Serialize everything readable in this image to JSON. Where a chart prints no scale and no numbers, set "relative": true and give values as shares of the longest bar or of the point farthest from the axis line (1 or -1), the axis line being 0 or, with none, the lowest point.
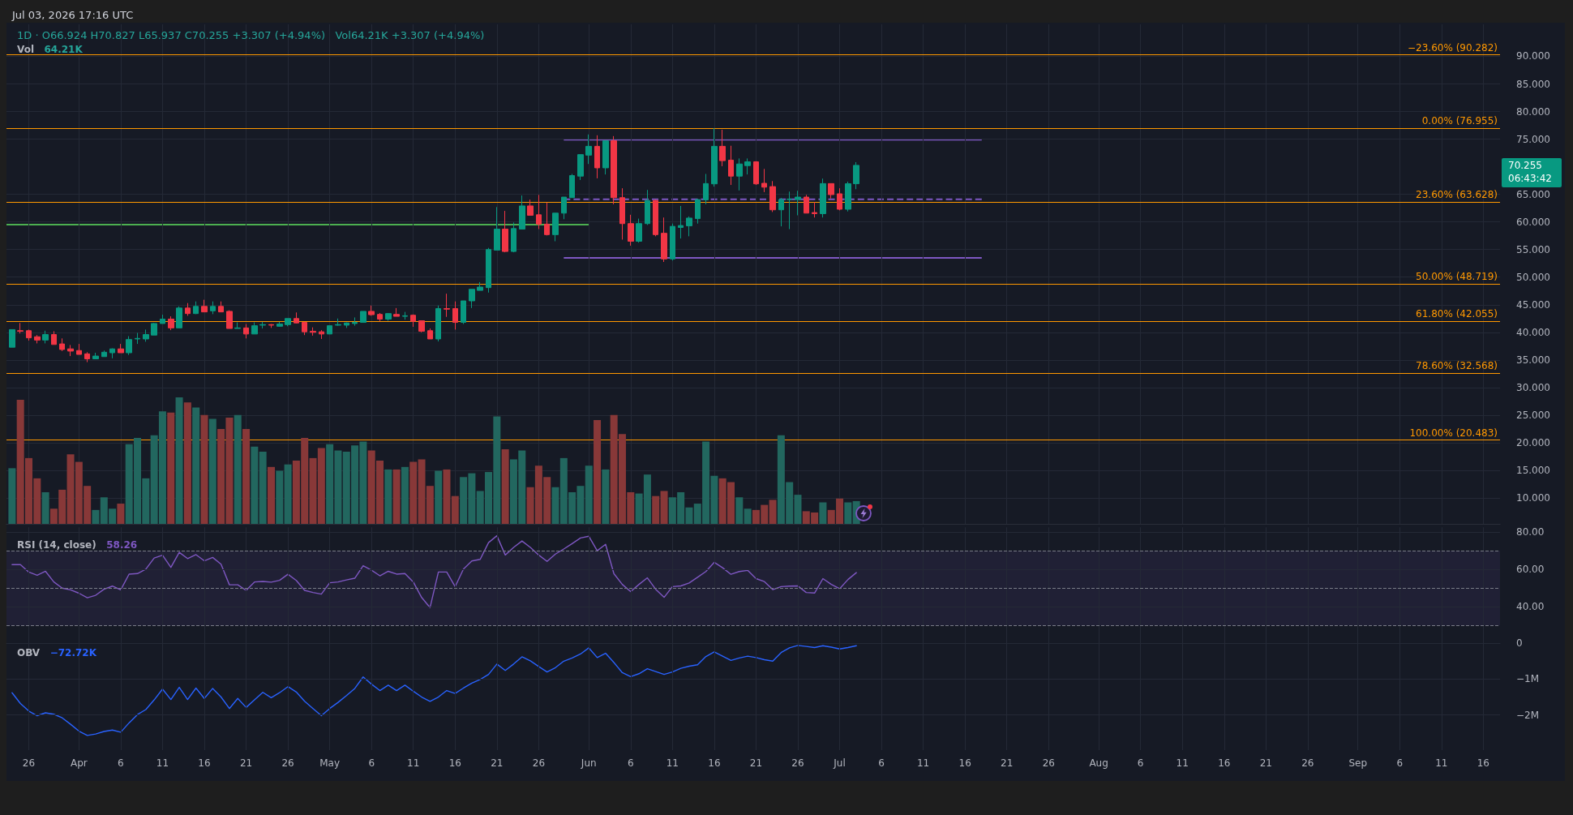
{
  "chart_data": [
    {
      "type": "candlestick",
      "title": "Jul 03, 2026 17:16 UTC",
      "subtitle": "1D · O66.924 H70.827 L65.937 C70.255 +3.307 (+4.94%)   Vol64.21K +3.307 (+4.94%)",
      "annotations": [
        "70.255",
        "06:43:42"
      ],
      "x": [
        "2026-03-24",
        "2026-03-25",
        "2026-03-26",
        "2026-03-27",
        "2026-03-28",
        "2026-03-29",
        "2026-03-30",
        "2026-03-31",
        "2026-04-01",
        "2026-04-02",
        "2026-04-03",
        "2026-04-04",
        "2026-04-05",
        "2026-04-06",
        "2026-04-07",
        "2026-04-08",
        "2026-04-09",
        "2026-04-10",
        "2026-04-11",
        "2026-04-12",
        "2026-04-13",
        "2026-04-14",
        "2026-04-15",
        "2026-04-16",
        "2026-04-17",
        "2026-04-18",
        "2026-04-19",
        "2026-04-20",
        "2026-04-21",
        "2026-04-22",
        "2026-04-23",
        "2026-04-24",
        "2026-04-25",
        "2026-04-26",
        "2026-04-27",
        "2026-04-28",
        "2026-04-29",
        "2026-04-30",
        "2026-05-01",
        "2026-05-02",
        "2026-05-03",
        "2026-05-04",
        "2026-05-05",
        "2026-05-06",
        "2026-05-07",
        "2026-05-08",
        "2026-05-09",
        "2026-05-10",
        "2026-05-11",
        "2026-05-12",
        "2026-05-13",
        "2026-05-14",
        "2026-05-15",
        "2026-05-16",
        "2026-05-17",
        "2026-05-18",
        "2026-05-19",
        "2026-05-20",
        "2026-05-21",
        "2026-05-22",
        "2026-05-23",
        "2026-05-24",
        "2026-05-25",
        "2026-05-26",
        "2026-05-27",
        "2026-05-28",
        "2026-05-29",
        "2026-05-30",
        "2026-05-31",
        "2026-06-01",
        "2026-06-02",
        "2026-06-03",
        "2026-06-04",
        "2026-06-05",
        "2026-06-06",
        "2026-06-07",
        "2026-06-08",
        "2026-06-09",
        "2026-06-10",
        "2026-06-11",
        "2026-06-12",
        "2026-06-13",
        "2026-06-14",
        "2026-06-15",
        "2026-06-16",
        "2026-06-17",
        "2026-06-18",
        "2026-06-19",
        "2026-06-20",
        "2026-06-21",
        "2026-06-22",
        "2026-06-23",
        "2026-06-24",
        "2026-06-25",
        "2026-06-26",
        "2026-06-27",
        "2026-06-28",
        "2026-06-29",
        "2026-06-30",
        "2026-07-01",
        "2026-07-02",
        "2026-07-03"
      ],
      "ohlc": [
        [
          37.3,
          40.5,
          37.3,
          40.5
        ],
        [
          40.3,
          41.7,
          39.8,
          40.2
        ],
        [
          40.3,
          40.5,
          38.5,
          39.0
        ],
        [
          39.2,
          39.5,
          38.0,
          38.6
        ],
        [
          38.6,
          40.3,
          38.0,
          39.6
        ],
        [
          39.6,
          40.2,
          37.8,
          37.8
        ],
        [
          37.9,
          38.9,
          36.6,
          36.9
        ],
        [
          37.0,
          37.7,
          35.7,
          36.6
        ],
        [
          36.7,
          37.9,
          36.0,
          36.0
        ],
        [
          36.1,
          36.4,
          34.6,
          35.2
        ],
        [
          35.2,
          36.3,
          35.2,
          35.7
        ],
        [
          35.6,
          36.7,
          35.6,
          36.4
        ],
        [
          36.3,
          37.1,
          35.3,
          37.0
        ],
        [
          37.0,
          37.9,
          36.3,
          36.3
        ],
        [
          36.3,
          39.3,
          35.9,
          38.7
        ],
        [
          38.8,
          39.9,
          37.9,
          38.9
        ],
        [
          38.8,
          40.5,
          38.3,
          39.6
        ],
        [
          39.5,
          41.7,
          39.5,
          41.6
        ],
        [
          41.6,
          43.2,
          41.6,
          42.4
        ],
        [
          42.4,
          42.9,
          40.4,
          40.8
        ],
        [
          40.8,
          44.7,
          40.8,
          44.4
        ],
        [
          44.4,
          45.3,
          43.0,
          43.4
        ],
        [
          43.4,
          45.6,
          43.3,
          44.7
        ],
        [
          44.7,
          45.9,
          43.7,
          43.7
        ],
        [
          43.9,
          45.6,
          43.3,
          44.7
        ],
        [
          44.7,
          45.6,
          43.7,
          43.7
        ],
        [
          43.8,
          44.0,
          40.7,
          40.7
        ],
        [
          40.7,
          41.8,
          40.7,
          40.8
        ],
        [
          40.8,
          41.5,
          38.9,
          39.7
        ],
        [
          39.7,
          41.8,
          39.7,
          41.2
        ],
        [
          41.3,
          41.9,
          40.7,
          41.4
        ],
        [
          41.4,
          41.5,
          40.8,
          41.3
        ],
        [
          41.1,
          41.9,
          41.0,
          41.5
        ],
        [
          41.4,
          42.5,
          41.1,
          42.5
        ],
        [
          42.5,
          43.6,
          41.6,
          41.7
        ],
        [
          41.8,
          41.9,
          39.5,
          40.1
        ],
        [
          40.2,
          40.9,
          39.4,
          40.0
        ],
        [
          40.1,
          40.4,
          38.8,
          39.7
        ],
        [
          39.7,
          41.2,
          39.7,
          41.2
        ],
        [
          41.3,
          42.5,
          41.2,
          41.4
        ],
        [
          41.3,
          41.8,
          40.8,
          41.7
        ],
        [
          41.6,
          42.7,
          41.2,
          41.8
        ],
        [
          41.8,
          43.8,
          41.8,
          43.8
        ],
        [
          43.8,
          44.85,
          43.0,
          43.2
        ],
        [
          43.25,
          43.5,
          42.0,
          42.4
        ],
        [
          42.4,
          43.5,
          42.1,
          43.4
        ],
        [
          43.25,
          44.4,
          42.9,
          42.9
        ],
        [
          42.9,
          43.7,
          42.3,
          43.0
        ],
        [
          43.1,
          43.25,
          41.0,
          42.0
        ],
        [
          42.1,
          42.1,
          40.0,
          40.2
        ],
        [
          40.3,
          40.7,
          38.8,
          38.8
        ],
        [
          38.8,
          44.85,
          38.35,
          44.3
        ],
        [
          44.3,
          47.0,
          42.8,
          44.2
        ],
        [
          44.3,
          45.6,
          40.5,
          41.8
        ],
        [
          41.8,
          45.7,
          41.5,
          45.7
        ],
        [
          45.7,
          47.8,
          44.4,
          47.8
        ],
        [
          47.6,
          49.1,
          47.6,
          48.2
        ],
        [
          48.1,
          55.3,
          47.2,
          55.0
        ],
        [
          54.9,
          62.7,
          54.9,
          58.7
        ],
        [
          58.7,
          62.0,
          54.5,
          54.65
        ],
        [
          54.65,
          59.9,
          54.5,
          58.8
        ],
        [
          58.7,
          64.8,
          58.7,
          62.9
        ],
        [
          62.9,
          64.05,
          61.2,
          61.2
        ],
        [
          61.3,
          64.9,
          58.7,
          59.6
        ],
        [
          59.6,
          63.5,
          57.55,
          57.7
        ],
        [
          57.7,
          61.6,
          56.5,
          61.6
        ],
        [
          61.6,
          64.5,
          60.5,
          64.5
        ],
        [
          64.4,
          68.7,
          64.4,
          68.4
        ],
        [
          68.3,
          72.2,
          67.6,
          72.2
        ],
        [
          72.1,
          75.85,
          70.5,
          73.7
        ],
        [
          73.7,
          75.7,
          67.9,
          69.8
        ],
        [
          69.8,
          74.7,
          68.6,
          74.7
        ],
        [
          74.7,
          75.55,
          63.2,
          64.4
        ],
        [
          64.4,
          66.1,
          56.8,
          59.7
        ],
        [
          59.7,
          61.3,
          55.7,
          56.5
        ],
        [
          56.5,
          60.6,
          56.25,
          59.7
        ],
        [
          59.7,
          65.8,
          59.45,
          63.9
        ],
        [
          63.9,
          64.05,
          57.4,
          57.7
        ],
        [
          57.95,
          60.8,
          52.75,
          53.3
        ],
        [
          53.3,
          59.7,
          53.0,
          59.2
        ],
        [
          59.0,
          62.9,
          57.0,
          59.35
        ],
        [
          59.3,
          61.0,
          57.4,
          60.7
        ],
        [
          60.6,
          64.2,
          59.7,
          64.05
        ],
        [
          64.0,
          68.7,
          63.2,
          66.95
        ],
        [
          66.9,
          77.0,
          66.4,
          73.7
        ],
        [
          73.7,
          76.7,
          70.1,
          71.1
        ],
        [
          71.2,
          73.8,
          66.7,
          68.3
        ],
        [
          68.3,
          71.5,
          65.7,
          70.5
        ],
        [
          70.2,
          71.5,
          68.6,
          70.9
        ],
        [
          70.9,
          71.0,
          66.7,
          66.9
        ],
        [
          67.0,
          69.6,
          65.4,
          66.3
        ],
        [
          66.4,
          67.4,
          61.8,
          62.2
        ],
        [
          62.2,
          64.35,
          59.2,
          64.05
        ],
        [
          64.05,
          65.5,
          58.7,
          64.15
        ],
        [
          64.05,
          65.65,
          61.2,
          64.5
        ],
        [
          64.5,
          64.9,
          61.6,
          61.6
        ],
        [
          61.7,
          63.6,
          60.8,
          61.5
        ],
        [
          61.5,
          67.85,
          60.8,
          66.95
        ],
        [
          66.95,
          66.95,
          64.25,
          64.95
        ],
        [
          65.1,
          66.1,
          62.1,
          62.3
        ],
        [
          62.3,
          67.3,
          61.9,
          66.924
        ],
        [
          66.924,
          70.827,
          65.937,
          70.255
        ]
      ],
      "colors": [
        "#089981",
        "#f23645",
        "#f23645",
        "#f23645",
        "#089981",
        "#f23645",
        "#f23645",
        "#f23645",
        "#f23645",
        "#f23645",
        "#089981",
        "#089981",
        "#089981",
        "#f23645",
        "#089981",
        "#089981",
        "#089981",
        "#089981",
        "#089981",
        "#f23645",
        "#089981",
        "#f23645",
        "#089981",
        "#f23645",
        "#089981",
        "#f23645",
        "#f23645",
        "#089981",
        "#f23645",
        "#089981",
        "#089981",
        "#f23645",
        "#089981",
        "#089981",
        "#f23645",
        "#f23645",
        "#f23645",
        "#f23645",
        "#089981",
        "#089981",
        "#089981",
        "#089981",
        "#089981",
        "#f23645",
        "#f23645",
        "#089981",
        "#f23645",
        "#089981",
        "#f23645",
        "#f23645",
        "#f23645",
        "#089981",
        "#f23645",
        "#f23645",
        "#089981",
        "#089981",
        "#089981",
        "#089981",
        "#089981",
        "#f23645",
        "#089981",
        "#089981",
        "#f23645",
        "#f23645",
        "#f23645",
        "#089981",
        "#089981",
        "#089981",
        "#089981",
        "#089981",
        "#f23645",
        "#089981",
        "#f23645",
        "#f23645",
        "#f23645",
        "#089981",
        "#089981",
        "#f23645",
        "#f23645",
        "#089981",
        "#089981",
        "#089981",
        "#089981",
        "#089981",
        "#089981",
        "#f23645",
        "#f23645",
        "#089981",
        "#089981",
        "#f23645",
        "#f23645",
        "#f23645",
        "#089981",
        "#089981",
        "#089981",
        "#f23645",
        "#f23645",
        "#089981",
        "#f23645",
        "#f23645",
        "#089981",
        "#089981"
      ],
      "series": [
        {
          "type": "line",
          "x": [
            "2026-03-23T08:00",
            "2026-06-01"
          ],
          "values": [
            59.5,
            59.5
          ],
          "color": "#4caf50"
        },
        {
          "type": "line",
          "x": [
            "2026-05-29",
            "2026-07-18"
          ],
          "values": [
            74.9,
            74.9
          ],
          "color": "#7e57c2"
        },
        {
          "type": "line",
          "x": [
            "2026-05-29",
            "2026-07-18"
          ],
          "values": [
            64.1,
            64.1
          ],
          "color": "#7e57c2",
          "line_style": "dashed"
        },
        {
          "type": "line",
          "x": [
            "2026-05-29",
            "2026-07-18"
          ],
          "values": [
            53.5,
            53.5
          ],
          "color": "#7e57c2"
        }
      ],
      "ref_lines": [
        {
          "axis": "y",
          "value": 90.282,
          "label": "−23.60% (90.282)",
          "color": "#ff9800"
        },
        {
          "axis": "y",
          "value": 76.955,
          "label": "0.00% (76.955)",
          "color": "#ff9800"
        },
        {
          "axis": "y",
          "value": 63.628,
          "label": "23.60% (63.628)",
          "color": "#ff9800"
        },
        {
          "axis": "y",
          "value": 48.719,
          "label": "50.00% (48.719)",
          "color": "#ff9800"
        },
        {
          "axis": "y",
          "value": 42.055,
          "label": "61.80% (42.055)",
          "color": "#ff9800"
        },
        {
          "axis": "y",
          "value": 32.568,
          "label": "78.60% (32.568)",
          "color": "#ff9800"
        },
        {
          "axis": "y",
          "value": 20.483,
          "label": "100.00% (20.483)",
          "color": "#ff9800"
        }
      ],
      "xlim": [
        "2026-03-23T08:00",
        "2026-09-18"
      ],
      "xticks": [
        {
          "value": "2026-03-26",
          "label": null
        },
        {
          "value": "2026-04-01",
          "label": null
        },
        {
          "value": "2026-04-06",
          "label": null
        },
        {
          "value": "2026-04-11",
          "label": null
        },
        {
          "value": "2026-04-16",
          "label": null
        },
        {
          "value": "2026-04-21",
          "label": null
        },
        {
          "value": "2026-04-26",
          "label": null
        },
        {
          "value": "2026-05-01",
          "label": null
        },
        {
          "value": "2026-05-06",
          "label": null
        },
        {
          "value": "2026-05-11",
          "label": null
        },
        {
          "value": "2026-05-16",
          "label": null
        },
        {
          "value": "2026-05-21",
          "label": null
        },
        {
          "value": "2026-05-26",
          "label": null
        },
        {
          "value": "2026-06-01",
          "label": null
        },
        {
          "value": "2026-06-06",
          "label": null
        },
        {
          "value": "2026-06-11",
          "label": null
        },
        {
          "value": "2026-06-16",
          "label": null
        },
        {
          "value": "2026-06-21",
          "label": null
        },
        {
          "value": "2026-06-26",
          "label": null
        },
        {
          "value": "2026-07-01",
          "label": null
        },
        {
          "value": "2026-07-06",
          "label": null
        },
        {
          "value": "2026-07-11",
          "label": null
        },
        {
          "value": "2026-07-16",
          "label": null
        },
        {
          "value": "2026-07-21",
          "label": null
        },
        {
          "value": "2026-07-26",
          "label": null
        },
        {
          "value": "2026-08-01",
          "label": null
        },
        {
          "value": "2026-08-06",
          "label": null
        },
        {
          "value": "2026-08-11",
          "label": null
        },
        {
          "value": "2026-08-16",
          "label": null
        },
        {
          "value": "2026-08-21",
          "label": null
        },
        {
          "value": "2026-08-26",
          "label": null
        },
        {
          "value": "2026-09-01",
          "label": null
        },
        {
          "value": "2026-09-06",
          "label": null
        },
        {
          "value": "2026-09-11",
          "label": null
        },
        {
          "value": "2026-09-16",
          "label": null
        }
      ],
      "ylim": [
        5.3,
        95.8
      ],
      "yticks": [
        {
          "value": 10,
          "label": "10.000"
        },
        {
          "value": 15,
          "label": "15.000"
        },
        {
          "value": 20,
          "label": "20.000"
        },
        {
          "value": 25,
          "label": "25.000"
        },
        {
          "value": 30,
          "label": "30.000"
        },
        {
          "value": 35,
          "label": "35.000"
        },
        {
          "value": 40,
          "label": "40.000"
        },
        {
          "value": 45,
          "label": "45.000"
        },
        {
          "value": 50,
          "label": "50.000"
        },
        {
          "value": 55,
          "label": "55.000"
        },
        {
          "value": 60,
          "label": "60.000"
        },
        {
          "value": 65,
          "label": "65.000"
        },
        {
          "value": 75,
          "label": "75.000"
        },
        {
          "value": 80,
          "label": "80.000"
        },
        {
          "value": 85,
          "label": "85.000"
        },
        {
          "value": 90,
          "label": "90.000"
        }
      ],
      "grid": true,
      "tick_labels": "y"
    },
    {
      "type": "bar",
      "title": "Vol",
      "subtitle": "64.21K",
      "relative": true,
      "tick_labels": false,
      "x": [
        "2026-03-24",
        "2026-03-25",
        "2026-03-26",
        "2026-03-27",
        "2026-03-28",
        "2026-03-29",
        "2026-03-30",
        "2026-03-31",
        "2026-04-01",
        "2026-04-02",
        "2026-04-03",
        "2026-04-04",
        "2026-04-05",
        "2026-04-06",
        "2026-04-07",
        "2026-04-08",
        "2026-04-09",
        "2026-04-10",
        "2026-04-11",
        "2026-04-12",
        "2026-04-13",
        "2026-04-14",
        "2026-04-15",
        "2026-04-16",
        "2026-04-17",
        "2026-04-18",
        "2026-04-19",
        "2026-04-20",
        "2026-04-21",
        "2026-04-22",
        "2026-04-23",
        "2026-04-24",
        "2026-04-25",
        "2026-04-26",
        "2026-04-27",
        "2026-04-28",
        "2026-04-29",
        "2026-04-30",
        "2026-05-01",
        "2026-05-02",
        "2026-05-03",
        "2026-05-04",
        "2026-05-05",
        "2026-05-06",
        "2026-05-07",
        "2026-05-08",
        "2026-05-09",
        "2026-05-10",
        "2026-05-11",
        "2026-05-12",
        "2026-05-13",
        "2026-05-14",
        "2026-05-15",
        "2026-05-16",
        "2026-05-17",
        "2026-05-18",
        "2026-05-19",
        "2026-05-20",
        "2026-05-21",
        "2026-05-22",
        "2026-05-23",
        "2026-05-24",
        "2026-05-25",
        "2026-05-26",
        "2026-05-27",
        "2026-05-28",
        "2026-05-29",
        "2026-05-30",
        "2026-05-31",
        "2026-06-01",
        "2026-06-02",
        "2026-06-03",
        "2026-06-04",
        "2026-06-05",
        "2026-06-06",
        "2026-06-07",
        "2026-06-08",
        "2026-06-09",
        "2026-06-10",
        "2026-06-11",
        "2026-06-12",
        "2026-06-13",
        "2026-06-14",
        "2026-06-15",
        "2026-06-16",
        "2026-06-17",
        "2026-06-18",
        "2026-06-19",
        "2026-06-20",
        "2026-06-21",
        "2026-06-22",
        "2026-06-23",
        "2026-06-24",
        "2026-06-25",
        "2026-06-26",
        "2026-06-27",
        "2026-06-28",
        "2026-06-29",
        "2026-06-30",
        "2026-07-01",
        "2026-07-02",
        "2026-07-03"
      ],
      "values": [
        0.44,
        0.98,
        0.52,
        0.36,
        0.25,
        0.12,
        0.27,
        0.55,
        0.49,
        0.3,
        0.11,
        0.21,
        0.12,
        0.16,
        0.63,
        0.68,
        0.36,
        0.7,
        0.89,
        0.88,
        1.0,
        0.96,
        0.92,
        0.86,
        0.83,
        0.75,
        0.84,
        0.86,
        0.75,
        0.61,
        0.57,
        0.45,
        0.42,
        0.47,
        0.5,
        0.68,
        0.52,
        0.6,
        0.63,
        0.58,
        0.57,
        0.62,
        0.65,
        0.58,
        0.5,
        0.43,
        0.43,
        0.45,
        0.49,
        0.51,
        0.3,
        0.42,
        0.43,
        0.22,
        0.37,
        0.4,
        0.26,
        0.41,
        0.85,
        0.59,
        0.51,
        0.58,
        0.29,
        0.46,
        0.37,
        0.29,
        0.52,
        0.25,
        0.3,
        0.46,
        0.82,
        0.43,
        0.86,
        0.71,
        0.25,
        0.24,
        0.39,
        0.22,
        0.26,
        0.21,
        0.25,
        0.13,
        0.16,
        0.65,
        0.38,
        0.36,
        0.33,
        0.21,
        0.12,
        0.11,
        0.15,
        0.19,
        0.7,
        0.33,
        0.23,
        0.1,
        0.09,
        0.17,
        0.11,
        0.2,
        0.17,
        0.18
      ],
      "colors": [
        "#22675f",
        "#883838",
        "#883838",
        "#883838",
        "#22675f",
        "#883838",
        "#883838",
        "#883838",
        "#883838",
        "#883838",
        "#22675f",
        "#22675f",
        "#22675f",
        "#883838",
        "#22675f",
        "#22675f",
        "#22675f",
        "#22675f",
        "#22675f",
        "#883838",
        "#22675f",
        "#883838",
        "#22675f",
        "#883838",
        "#22675f",
        "#883838",
        "#883838",
        "#22675f",
        "#883838",
        "#22675f",
        "#22675f",
        "#883838",
        "#22675f",
        "#22675f",
        "#883838",
        "#883838",
        "#883838",
        "#883838",
        "#22675f",
        "#22675f",
        "#22675f",
        "#22675f",
        "#22675f",
        "#883838",
        "#883838",
        "#22675f",
        "#883838",
        "#22675f",
        "#883838",
        "#883838",
        "#883838",
        "#22675f",
        "#883838",
        "#883838",
        "#22675f",
        "#22675f",
        "#22675f",
        "#22675f",
        "#22675f",
        "#883838",
        "#22675f",
        "#22675f",
        "#883838",
        "#883838",
        "#883838",
        "#22675f",
        "#22675f",
        "#22675f",
        "#22675f",
        "#22675f",
        "#883838",
        "#22675f",
        "#883838",
        "#883838",
        "#883838",
        "#22675f",
        "#22675f",
        "#883838",
        "#883838",
        "#22675f",
        "#22675f",
        "#22675f",
        "#22675f",
        "#22675f",
        "#22675f",
        "#883838",
        "#883838",
        "#22675f",
        "#22675f",
        "#883838",
        "#883838",
        "#883838",
        "#22675f",
        "#22675f",
        "#22675f",
        "#883838",
        "#883838",
        "#22675f",
        "#883838",
        "#883838",
        "#22675f",
        "#22675f"
      ],
      "xlim": [
        "2026-03-23T08:00",
        "2026-09-18"
      ]
    },
    {
      "type": "line",
      "title": "RSI (14, close)",
      "subtitle": "58.26",
      "color": "#7e57c2",
      "x": [
        "2026-03-24",
        "2026-03-25",
        "2026-03-26",
        "2026-03-27",
        "2026-03-28",
        "2026-03-29",
        "2026-03-30",
        "2026-03-31",
        "2026-04-01",
        "2026-04-02",
        "2026-04-03",
        "2026-04-04",
        "2026-04-05",
        "2026-04-06",
        "2026-04-07",
        "2026-04-08",
        "2026-04-09",
        "2026-04-10",
        "2026-04-11",
        "2026-04-12",
        "2026-04-13",
        "2026-04-14",
        "2026-04-15",
        "2026-04-16",
        "2026-04-17",
        "2026-04-18",
        "2026-04-19",
        "2026-04-20",
        "2026-04-21",
        "2026-04-22",
        "2026-04-23",
        "2026-04-24",
        "2026-04-25",
        "2026-04-26",
        "2026-04-27",
        "2026-04-28",
        "2026-04-29",
        "2026-04-30",
        "2026-05-01",
        "2026-05-02",
        "2026-05-03",
        "2026-05-04",
        "2026-05-05",
        "2026-05-06",
        "2026-05-07",
        "2026-05-08",
        "2026-05-09",
        "2026-05-10",
        "2026-05-11",
        "2026-05-12",
        "2026-05-13",
        "2026-05-14",
        "2026-05-15",
        "2026-05-16",
        "2026-05-17",
        "2026-05-18",
        "2026-05-19",
        "2026-05-20",
        "2026-05-21",
        "2026-05-22",
        "2026-05-23",
        "2026-05-24",
        "2026-05-25",
        "2026-05-26",
        "2026-05-27",
        "2026-05-28",
        "2026-05-29",
        "2026-05-30",
        "2026-05-31",
        "2026-06-01",
        "2026-06-02",
        "2026-06-03",
        "2026-06-04",
        "2026-06-05",
        "2026-06-06",
        "2026-06-07",
        "2026-06-08",
        "2026-06-09",
        "2026-06-10",
        "2026-06-11",
        "2026-06-12",
        "2026-06-13",
        "2026-06-14",
        "2026-06-15",
        "2026-06-16",
        "2026-06-17",
        "2026-06-18",
        "2026-06-19",
        "2026-06-20",
        "2026-06-21",
        "2026-06-22",
        "2026-06-23",
        "2026-06-24",
        "2026-06-25",
        "2026-06-26",
        "2026-06-27",
        "2026-06-28",
        "2026-06-29",
        "2026-06-30",
        "2026-07-01",
        "2026-07-02",
        "2026-07-03"
      ],
      "values": [
        62.6,
        62.6,
        58.6,
        56.9,
        59.0,
        53.3,
        50.0,
        49.1,
        47.3,
        44.9,
        46.2,
        49.4,
        51.1,
        49.1,
        57.5,
        57.8,
        60.1,
        66.1,
        67.6,
        61.1,
        69.1,
        65.8,
        67.9,
        64.6,
        66.4,
        62.8,
        51.8,
        51.8,
        48.8,
        53.3,
        53.6,
        53.2,
        54.2,
        57.4,
        54.1,
        48.8,
        47.7,
        46.8,
        52.9,
        53.3,
        54.4,
        55.3,
        62.0,
        59.6,
        56.6,
        59.0,
        57.5,
        57.8,
        53.3,
        45.0,
        39.6,
        58.6,
        58.6,
        50.8,
        60.2,
        64.5,
        65.4,
        74.3,
        78.0,
        67.7,
        71.8,
        75.2,
        71.8,
        67.7,
        64.3,
        68.2,
        70.9,
        73.8,
        76.8,
        77.7,
        70.0,
        73.4,
        57.7,
        52.0,
        48.2,
        52.0,
        55.5,
        49.4,
        45.1,
        50.8,
        51.2,
        52.8,
        55.8,
        58.9,
        63.8,
        60.9,
        57.4,
        58.9,
        59.5,
        55.1,
        53.5,
        49.2,
        50.8,
        51.1,
        51.2,
        47.7,
        47.4,
        55.1,
        52.0,
        49.7,
        54.6,
        58.3
      ],
      "ref_lines": [
        {
          "axis": "y",
          "value": 70,
          "color": "#787b86",
          "line_style": "dashed"
        },
        {
          "axis": "y",
          "value": 50,
          "color": "#787b86",
          "line_style": "dashed"
        },
        {
          "axis": "y",
          "value": 30,
          "color": "#787b86",
          "line_style": "dashed"
        }
      ],
      "bands": [
        {
          "axis": "y",
          "from": 30,
          "to": 70,
          "color": "#7e57c2"
        }
      ],
      "xlim": [
        "2026-03-23T08:00",
        "2026-09-18"
      ],
      "xticks": [
        {
          "value": "2026-03-26",
          "label": null
        },
        {
          "value": "2026-04-01",
          "label": null
        },
        {
          "value": "2026-04-06",
          "label": null
        },
        {
          "value": "2026-04-11",
          "label": null
        },
        {
          "value": "2026-04-16",
          "label": null
        },
        {
          "value": "2026-04-21",
          "label": null
        },
        {
          "value": "2026-04-26",
          "label": null
        },
        {
          "value": "2026-05-01",
          "label": null
        },
        {
          "value": "2026-05-06",
          "label": null
        },
        {
          "value": "2026-05-11",
          "label": null
        },
        {
          "value": "2026-05-16",
          "label": null
        },
        {
          "value": "2026-05-21",
          "label": null
        },
        {
          "value": "2026-05-26",
          "label": null
        },
        {
          "value": "2026-06-01",
          "label": null
        },
        {
          "value": "2026-06-06",
          "label": null
        },
        {
          "value": "2026-06-11",
          "label": null
        },
        {
          "value": "2026-06-16",
          "label": null
        },
        {
          "value": "2026-06-21",
          "label": null
        },
        {
          "value": "2026-06-26",
          "label": null
        },
        {
          "value": "2026-07-01",
          "label": null
        },
        {
          "value": "2026-07-06",
          "label": null
        },
        {
          "value": "2026-07-11",
          "label": null
        },
        {
          "value": "2026-07-16",
          "label": null
        },
        {
          "value": "2026-07-21",
          "label": null
        },
        {
          "value": "2026-07-26",
          "label": null
        },
        {
          "value": "2026-08-01",
          "label": null
        },
        {
          "value": "2026-08-06",
          "label": null
        },
        {
          "value": "2026-08-11",
          "label": null
        },
        {
          "value": "2026-08-16",
          "label": null
        },
        {
          "value": "2026-08-21",
          "label": null
        },
        {
          "value": "2026-08-26",
          "label": null
        },
        {
          "value": "2026-09-01",
          "label": null
        },
        {
          "value": "2026-09-06",
          "label": null
        },
        {
          "value": "2026-09-11",
          "label": null
        },
        {
          "value": "2026-09-16",
          "label": null
        }
      ],
      "ylim": [
        25,
        82.5
      ],
      "yticks": [
        {
          "value": 40,
          "label": "40.00"
        },
        {
          "value": 60,
          "label": "60.00"
        },
        {
          "value": 80,
          "label": "80.00"
        }
      ],
      "grid": true,
      "tick_labels": "y"
    },
    {
      "type": "line",
      "title": "OBV",
      "subtitle": "−72.72K",
      "color": "#2962ff",
      "x": [
        "2026-03-24",
        "2026-03-25",
        "2026-03-26",
        "2026-03-27",
        "2026-03-28",
        "2026-03-29",
        "2026-03-30",
        "2026-03-31",
        "2026-04-01",
        "2026-04-02",
        "2026-04-03",
        "2026-04-04",
        "2026-04-05",
        "2026-04-06",
        "2026-04-07",
        "2026-04-08",
        "2026-04-09",
        "2026-04-10",
        "2026-04-11",
        "2026-04-12",
        "2026-04-13",
        "2026-04-14",
        "2026-04-15",
        "2026-04-16",
        "2026-04-17",
        "2026-04-18",
        "2026-04-19",
        "2026-04-20",
        "2026-04-21",
        "2026-04-22",
        "2026-04-23",
        "2026-04-24",
        "2026-04-25",
        "2026-04-26",
        "2026-04-27",
        "2026-04-28",
        "2026-04-29",
        "2026-04-30",
        "2026-05-01",
        "2026-05-02",
        "2026-05-03",
        "2026-05-04",
        "2026-05-05",
        "2026-05-06",
        "2026-05-07",
        "2026-05-08",
        "2026-05-09",
        "2026-05-10",
        "2026-05-11",
        "2026-05-12",
        "2026-05-13",
        "2026-05-14",
        "2026-05-15",
        "2026-05-16",
        "2026-05-17",
        "2026-05-18",
        "2026-05-19",
        "2026-05-20",
        "2026-05-21",
        "2026-05-22",
        "2026-05-23",
        "2026-05-24",
        "2026-05-25",
        "2026-05-26",
        "2026-05-27",
        "2026-05-28",
        "2026-05-29",
        "2026-05-30",
        "2026-05-31",
        "2026-06-01",
        "2026-06-02",
        "2026-06-03",
        "2026-06-04",
        "2026-06-05",
        "2026-06-06",
        "2026-06-07",
        "2026-06-08",
        "2026-06-09",
        "2026-06-10",
        "2026-06-11",
        "2026-06-12",
        "2026-06-13",
        "2026-06-14",
        "2026-06-15",
        "2026-06-16",
        "2026-06-17",
        "2026-06-18",
        "2026-06-19",
        "2026-06-20",
        "2026-06-21",
        "2026-06-22",
        "2026-06-23",
        "2026-06-24",
        "2026-06-25",
        "2026-06-26",
        "2026-06-27",
        "2026-06-28",
        "2026-06-29",
        "2026-06-30",
        "2026-07-01",
        "2026-07-02",
        "2026-07-03"
      ],
      "values": [
        -1.38,
        -1.68,
        -1.89,
        -2.02,
        -1.94,
        -1.98,
        -2.08,
        -2.26,
        -2.45,
        -2.57,
        -2.53,
        -2.46,
        -2.42,
        -2.48,
        -2.22,
        -1.99,
        -1.85,
        -1.58,
        -1.28,
        -1.57,
        -1.23,
        -1.57,
        -1.25,
        -1.54,
        -1.26,
        -1.5,
        -1.82,
        -1.54,
        -1.79,
        -1.58,
        -1.37,
        -1.52,
        -1.38,
        -1.21,
        -1.36,
        -1.62,
        -1.82,
        -2.02,
        -1.82,
        -1.65,
        -1.46,
        -1.26,
        -0.94,
        -1.14,
        -1.32,
        -1.17,
        -1.32,
        -1.17,
        -1.34,
        -1.5,
        -1.62,
        -1.5,
        -1.32,
        -1.4,
        -1.25,
        -1.11,
        -1.01,
        -0.87,
        -0.58,
        -0.76,
        -0.58,
        -0.38,
        -0.49,
        -0.65,
        -0.8,
        -0.68,
        -0.5,
        -0.41,
        -0.3,
        -0.13,
        -0.4,
        -0.28,
        -0.54,
        -0.82,
        -0.93,
        -0.85,
        -0.71,
        -0.79,
        -0.87,
        -0.8,
        -0.7,
        -0.64,
        -0.6,
        -0.37,
        -0.24,
        -0.36,
        -0.48,
        -0.41,
        -0.36,
        -0.4,
        -0.46,
        -0.5,
        -0.26,
        -0.13,
        -0.06,
        -0.09,
        -0.12,
        -0.07,
        -0.11,
        -0.16,
        -0.12,
        -0.07
      ],
      "xlim": [
        "2026-03-23T08:00",
        "2026-09-18"
      ],
      "xticks": [
        {
          "value": "2026-03-26",
          "label": "26"
        },
        {
          "value": "2026-04-01",
          "label": "Apr"
        },
        {
          "value": "2026-04-06",
          "label": "6"
        },
        {
          "value": "2026-04-11",
          "label": "11"
        },
        {
          "value": "2026-04-16",
          "label": "16"
        },
        {
          "value": "2026-04-21",
          "label": "21"
        },
        {
          "value": "2026-04-26",
          "label": "26"
        },
        {
          "value": "2026-05-01",
          "label": "May"
        },
        {
          "value": "2026-05-06",
          "label": "6"
        },
        {
          "value": "2026-05-11",
          "label": "11"
        },
        {
          "value": "2026-05-16",
          "label": "16"
        },
        {
          "value": "2026-05-21",
          "label": "21"
        },
        {
          "value": "2026-05-26",
          "label": "26"
        },
        {
          "value": "2026-06-01",
          "label": "Jun"
        },
        {
          "value": "2026-06-06",
          "label": "6"
        },
        {
          "value": "2026-06-11",
          "label": "11"
        },
        {
          "value": "2026-06-16",
          "label": "16"
        },
        {
          "value": "2026-06-21",
          "label": "21"
        },
        {
          "value": "2026-06-26",
          "label": "26"
        },
        {
          "value": "2026-07-01",
          "label": "Jul"
        },
        {
          "value": "2026-07-06",
          "label": "6"
        },
        {
          "value": "2026-07-11",
          "label": "11"
        },
        {
          "value": "2026-07-16",
          "label": "16"
        },
        {
          "value": "2026-07-21",
          "label": "21"
        },
        {
          "value": "2026-07-26",
          "label": "26"
        },
        {
          "value": "2026-08-01",
          "label": "Aug"
        },
        {
          "value": "2026-08-06",
          "label": "6"
        },
        {
          "value": "2026-08-11",
          "label": "11"
        },
        {
          "value": "2026-08-16",
          "label": "16"
        },
        {
          "value": "2026-08-21",
          "label": "21"
        },
        {
          "value": "2026-08-26",
          "label": "26"
        },
        {
          "value": "2026-09-01",
          "label": "Sep"
        },
        {
          "value": "2026-09-06",
          "label": "6"
        },
        {
          "value": "2026-09-11",
          "label": "11"
        },
        {
          "value": "2026-09-16",
          "label": "16"
        }
      ],
      "ylim": [
        -2.98,
        0.23
      ],
      "yticks": [
        {
          "value": -2,
          "label": "−2M"
        },
        {
          "value": -1,
          "label": "−1M"
        },
        0
      ],
      "grid": true
    }
  ]
}
